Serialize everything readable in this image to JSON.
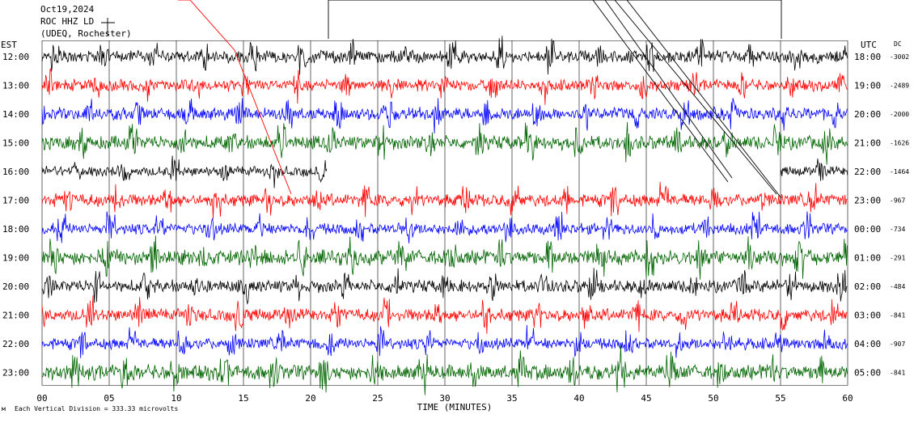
{
  "header": {
    "date": "Oct19,2024",
    "station": "ROC HHZ LD",
    "network": "(UDEQ, Rochester)"
  },
  "labels": {
    "left_tz": "EST",
    "right_tz": "UTC",
    "dc_header": "DC",
    "x_axis_title": "TIME (MINUTES)",
    "footer_scale": "Each Vertical Division = 333.33 microvolts"
  },
  "chart_data": {
    "type": "line",
    "title": "",
    "xlabel": "TIME (MINUTES)",
    "ylabel": "",
    "xlim": [
      0,
      60
    ],
    "x_ticks": [
      "00",
      "05",
      "10",
      "15",
      "20",
      "25",
      "30",
      "35",
      "40",
      "45",
      "50",
      "55",
      "60"
    ],
    "grid": true,
    "series_colors": [
      "#000000",
      "#ff0000",
      "#0000ff",
      "#006400"
    ],
    "rows": [
      {
        "est": "12:00",
        "utc": "18:00",
        "dc": "-3002",
        "color": "#000000",
        "amplitude": 1.0,
        "gap": null
      },
      {
        "est": "13:00",
        "utc": "19:00",
        "dc": "-2489",
        "color": "#ff0000",
        "amplitude": 0.9,
        "gap": null
      },
      {
        "est": "14:00",
        "utc": "20:00",
        "dc": "-2000",
        "color": "#0000ff",
        "amplitude": 1.0,
        "gap": null
      },
      {
        "est": "15:00",
        "utc": "21:00",
        "dc": "-1626",
        "color": "#006400",
        "amplitude": 1.1,
        "gap": null
      },
      {
        "est": "16:00",
        "utc": "22:00",
        "dc": "-1464",
        "color": "#000000",
        "amplitude": 0.8,
        "gap": [
          21.2,
          55.0
        ]
      },
      {
        "est": "17:00",
        "utc": "23:00",
        "dc": "-967",
        "color": "#ff0000",
        "amplitude": 1.0,
        "gap": null
      },
      {
        "est": "18:00",
        "utc": "00:00",
        "dc": "-734",
        "color": "#0000ff",
        "amplitude": 0.9,
        "gap": null
      },
      {
        "est": "19:00",
        "utc": "01:00",
        "dc": "-291",
        "color": "#006400",
        "amplitude": 1.2,
        "gap": null
      },
      {
        "est": "20:00",
        "utc": "02:00",
        "dc": "-484",
        "color": "#000000",
        "amplitude": 1.0,
        "gap": null
      },
      {
        "est": "21:00",
        "utc": "03:00",
        "dc": "-841",
        "color": "#ff0000",
        "amplitude": 1.0,
        "gap": null
      },
      {
        "est": "22:00",
        "utc": "04:00",
        "dc": "-907",
        "color": "#0000ff",
        "amplitude": 0.9,
        "gap": null
      },
      {
        "est": "23:00",
        "utc": "05:00",
        "dc": "-841",
        "color": "#006400",
        "amplitude": 1.2,
        "gap": null
      }
    ]
  }
}
